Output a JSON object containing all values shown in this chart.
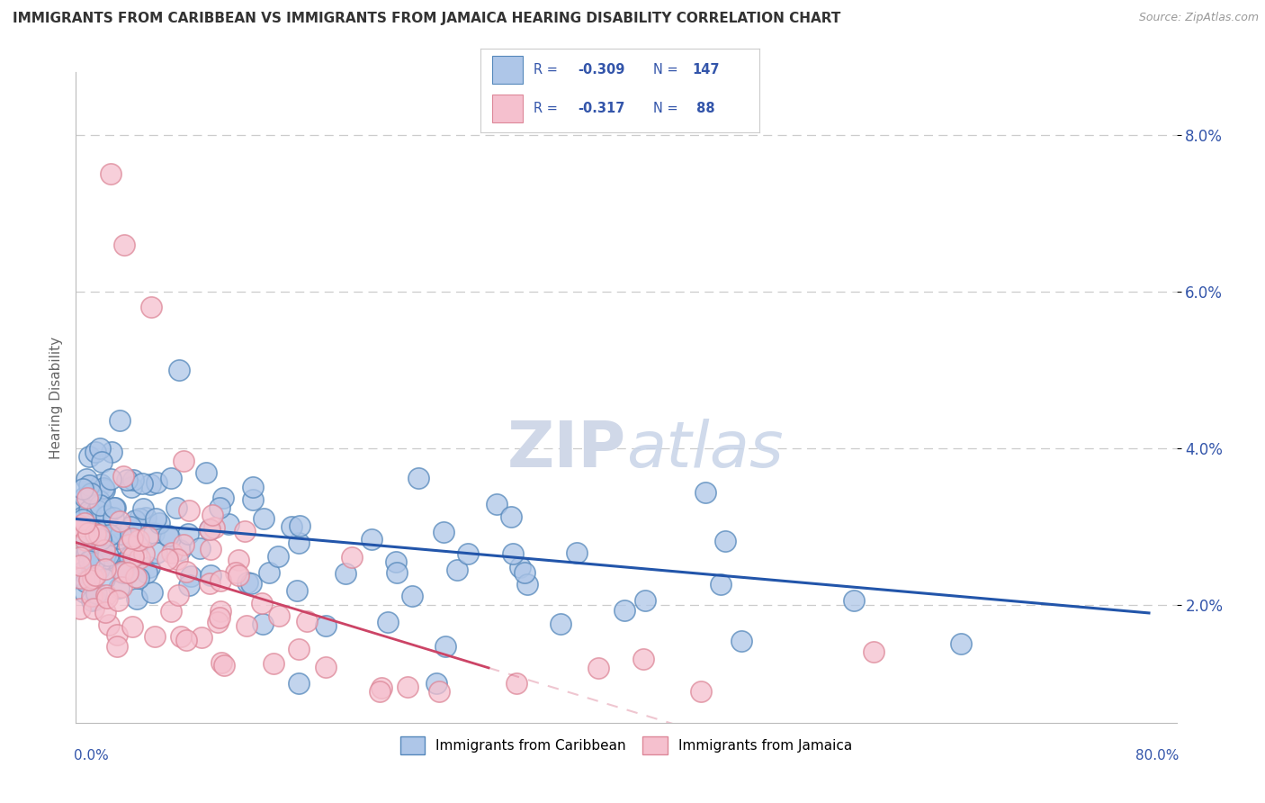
{
  "title": "IMMIGRANTS FROM CARIBBEAN VS IMMIGRANTS FROM JAMAICA HEARING DISABILITY CORRELATION CHART",
  "source": "Source: ZipAtlas.com",
  "ylabel": "Hearing Disability",
  "y_ticks": [
    0.02,
    0.04,
    0.06,
    0.08
  ],
  "y_tick_labels": [
    "2.0%",
    "4.0%",
    "6.0%",
    "8.0%"
  ],
  "x_lim": [
    0.0,
    0.8
  ],
  "y_lim": [
    0.005,
    0.088
  ],
  "series": [
    {
      "label": "Immigrants from Caribbean",
      "R": -0.309,
      "N": 147,
      "color": "#aec6e8",
      "edge_color": "#5588bb",
      "trend_color": "#2255aa",
      "trend_style": "solid"
    },
    {
      "label": "Immigrants from Jamaica",
      "R": -0.317,
      "N": 88,
      "color": "#f5c0ce",
      "edge_color": "#dd8899",
      "trend_color": "#cc4466",
      "trend_style": "solid"
    }
  ],
  "legend_color": "#3355aa",
  "watermark_color": "#d0d8e8",
  "background_color": "#ffffff",
  "grid_color": "#cccccc",
  "title_color": "#333333",
  "axis_label_color": "#3355aa"
}
